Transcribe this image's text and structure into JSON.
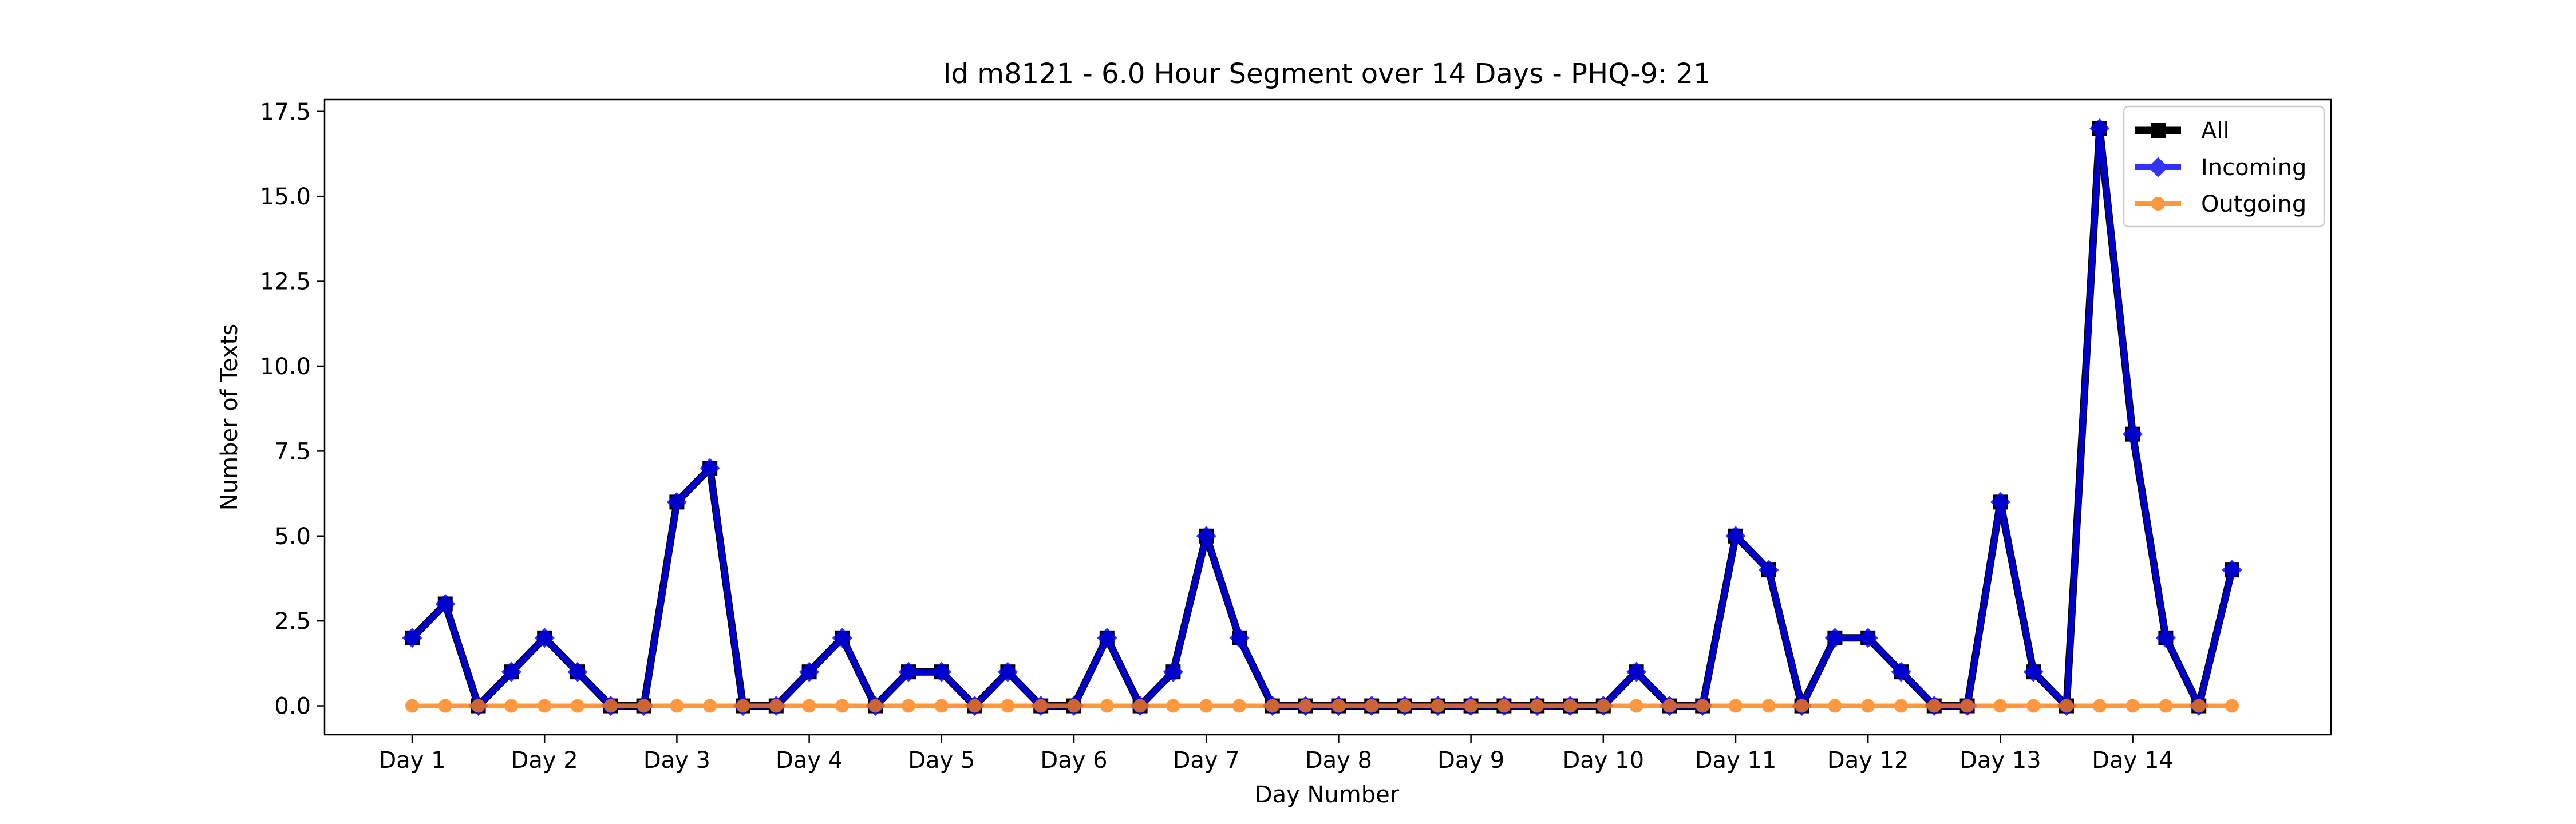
{
  "chart_data": {
    "type": "line",
    "title": "Id m8121 - 6.0 Hour Segment over 14 Days - PHQ-9: 21",
    "xlabel": "Day Number",
    "ylabel": "Number of Texts",
    "xticks": [
      "Day 1",
      "Day 2",
      "Day 3",
      "Day 4",
      "Day 5",
      "Day 6",
      "Day 7",
      "Day 8",
      "Day 9",
      "Day 10",
      "Day 11",
      "Day 12",
      "Day 13",
      "Day 14"
    ],
    "yticks": [
      "0.0",
      "2.5",
      "5.0",
      "7.5",
      "10.0",
      "12.5",
      "15.0",
      "17.5"
    ],
    "ylim": [
      -0.85,
      17.85
    ],
    "points_per_day": 4,
    "grid": false,
    "legend_position": "top-right",
    "series": [
      {
        "name": "All",
        "color": "#000000",
        "marker": "square",
        "values": [
          2,
          3,
          0,
          1,
          2,
          1,
          0,
          0,
          6,
          7,
          0,
          0,
          1,
          2,
          0,
          1,
          1,
          0,
          1,
          0,
          0,
          2,
          0,
          1,
          5,
          2,
          0,
          0,
          0,
          0,
          0,
          0,
          0,
          0,
          0,
          0,
          0,
          1,
          0,
          0,
          5,
          4,
          0,
          2,
          2,
          1,
          0,
          0,
          6,
          1,
          0,
          17,
          8,
          2,
          0,
          4
        ]
      },
      {
        "name": "Incoming",
        "color": "#0000ff",
        "marker": "diamond",
        "values": [
          2,
          3,
          0,
          1,
          2,
          1,
          0,
          0,
          6,
          7,
          0,
          0,
          1,
          2,
          0,
          1,
          1,
          0,
          1,
          0,
          0,
          2,
          0,
          1,
          5,
          2,
          0,
          0,
          0,
          0,
          0,
          0,
          0,
          0,
          0,
          0,
          0,
          1,
          0,
          0,
          5,
          4,
          0,
          2,
          2,
          1,
          0,
          0,
          6,
          1,
          0,
          17,
          8,
          2,
          0,
          4
        ]
      },
      {
        "name": "Outgoing",
        "color": "#ff7f0e",
        "marker": "circle",
        "values": [
          0,
          0,
          0,
          0,
          0,
          0,
          0,
          0,
          0,
          0,
          0,
          0,
          0,
          0,
          0,
          0,
          0,
          0,
          0,
          0,
          0,
          0,
          0,
          0,
          0,
          0,
          0,
          0,
          0,
          0,
          0,
          0,
          0,
          0,
          0,
          0,
          0,
          0,
          0,
          0,
          0,
          0,
          0,
          0,
          0,
          0,
          0,
          0,
          0,
          0,
          0,
          0,
          0,
          0,
          0,
          0
        ]
      }
    ]
  }
}
